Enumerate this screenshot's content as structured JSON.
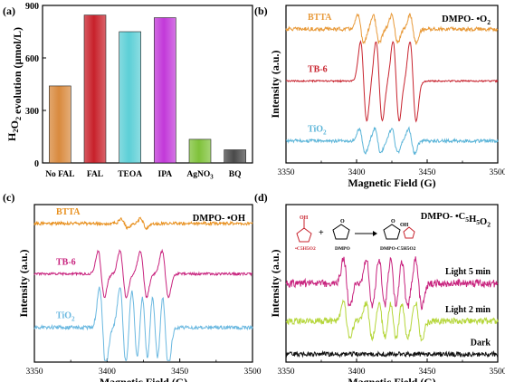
{
  "chart_data": [
    {
      "panel": "(a)",
      "type": "bar",
      "ylabel": "H2O2 evolution (μmol/L)",
      "ylabel_main": "H",
      "ylabel_sub1": "2",
      "ylabel_mid": "O",
      "ylabel_sub2": "2",
      "ylabel_rest": " evolution (μmol/L)",
      "ylim": [
        0,
        900
      ],
      "yticks": [
        "0",
        "300",
        "600",
        "900"
      ],
      "yticks_values": [
        0,
        300,
        600,
        900
      ],
      "categories": [
        "No FAL",
        "FAL",
        "TEOA",
        "IPA",
        "AgNO3",
        "BQ"
      ],
      "category_labels": [
        {
          "main": "No FAL",
          "sub": ""
        },
        {
          "main": "FAL",
          "sub": ""
        },
        {
          "main": "TEOA",
          "sub": ""
        },
        {
          "main": "IPA",
          "sub": ""
        },
        {
          "main": "AgNO",
          "sub": "3"
        },
        {
          "main": "BQ",
          "sub": ""
        }
      ],
      "values": [
        440,
        845,
        750,
        830,
        135,
        75
      ],
      "colors": [
        "#d98a3e",
        "#c8212b",
        "#5ccfd6",
        "#c239d9",
        "#7fc23a",
        "#4a4a4a"
      ]
    },
    {
      "panel": "(b)",
      "type": "line",
      "xlabel": "Magnetic Field (G)",
      "ylabel": "Intensity (a.u.)",
      "xlim": [
        3350,
        3500
      ],
      "xticks": [
        "3350",
        "3400",
        "3450",
        "3500"
      ],
      "xticks_values": [
        3350,
        3400,
        3450,
        3500
      ],
      "annotation": "DMPO- •O2",
      "annotation_main": "DMPO- •O",
      "annotation_sub": "2",
      "series": [
        {
          "name": "BTTA",
          "name_main": "BTTA",
          "name_sub": "",
          "color": "#e89a3a",
          "offset": 0.85,
          "amp": 0.09,
          "noise": 0.012,
          "peaks": [
            3403,
            3414,
            3427,
            3440
          ]
        },
        {
          "name": "TB-6",
          "name_main": "TB-6",
          "name_sub": "",
          "color": "#c8232e",
          "offset": 0.52,
          "amp": 0.26,
          "noise": 0.005,
          "peaks": [
            3405,
            3416,
            3428,
            3440
          ]
        },
        {
          "name": "TiO2",
          "name_main": "TiO",
          "name_sub": "2",
          "color": "#5ab4d8",
          "offset": 0.14,
          "amp": 0.08,
          "noise": 0.01,
          "peaks": [
            3404,
            3415,
            3427,
            3439
          ]
        }
      ]
    },
    {
      "panel": "(c)",
      "type": "line",
      "xlabel": "Magnetic Field (G)",
      "ylabel": "Intensity (a.u.)",
      "xlim": [
        3350,
        3500
      ],
      "xticks": [
        "3350",
        "3400",
        "3450",
        "3500"
      ],
      "xticks_values": [
        3350,
        3400,
        3450,
        3500
      ],
      "annotation": "DMPO- •OH",
      "annotation_main": "DMPO- •OH",
      "annotation_sub": "",
      "series": [
        {
          "name": "BTTA",
          "name_main": "BTTA",
          "name_sub": "",
          "color": "#e8901e",
          "offset": 0.88,
          "amp": 0.03,
          "noise": 0.01,
          "peaks": [
            3412,
            3425
          ]
        },
        {
          "name": "TB-6",
          "name_main": "TB-6",
          "name_sub": "",
          "color": "#c8237e",
          "offset": 0.56,
          "amp": 0.15,
          "noise": 0.008,
          "peaks": [
            3396,
            3411,
            3425,
            3440
          ]
        },
        {
          "name": "TiO2",
          "name_main": "TiO",
          "name_sub": "2",
          "color": "#6ab8e0",
          "offset": 0.22,
          "amp": 0.26,
          "noise": 0.012,
          "peaks": [
            3397,
            3411,
            3419,
            3426,
            3433,
            3440
          ]
        }
      ]
    },
    {
      "panel": "(d)",
      "type": "line",
      "xlabel": "Magnetic Field (G)",
      "ylabel": "Intensity (a.u.)",
      "xlim": [
        3350,
        3500
      ],
      "xticks": [
        "3350",
        "3400",
        "3450",
        "3500"
      ],
      "xticks_values": [
        3350,
        3400,
        3450,
        3500
      ],
      "annotation": "DMPO- •C5H5O2",
      "annotation_parts": [
        [
          "DMPO- •C",
          ""
        ],
        [
          "5",
          "sub"
        ],
        [
          "H",
          ""
        ],
        [
          "5",
          "sub"
        ],
        [
          "O",
          ""
        ],
        [
          "2",
          "sub"
        ]
      ],
      "scheme_labels": {
        "reactant": "•C5H5O2",
        "reagent": "DMPO",
        "product": "DMPO-C5H5O2"
      },
      "series": [
        {
          "name": "Light 5 min",
          "name_main": "Light 5 min",
          "name_sub": "",
          "color": "#c8237e",
          "offset": 0.5,
          "amp": 0.16,
          "noise": 0.025,
          "peaks": [
            3393,
            3409,
            3418,
            3426,
            3434,
            3444
          ]
        },
        {
          "name": "Light 2 min",
          "name_main": "Light 2 min",
          "name_sub": "",
          "color": "#b5d63a",
          "offset": 0.26,
          "amp": 0.12,
          "noise": 0.02,
          "peaks": [
            3393,
            3409,
            3418,
            3426,
            3434,
            3444
          ]
        },
        {
          "name": "Dark",
          "name_main": "Dark",
          "name_sub": "",
          "color": "#111111",
          "offset": 0.05,
          "amp": 0.0,
          "noise": 0.015,
          "peaks": []
        }
      ]
    }
  ]
}
